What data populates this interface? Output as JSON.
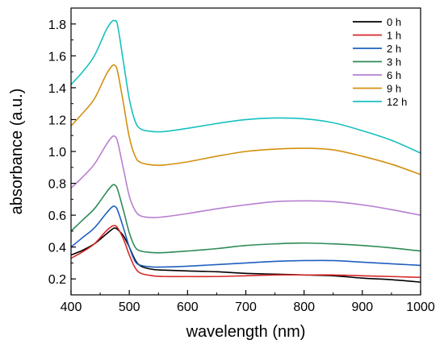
{
  "chart_data": {
    "type": "line",
    "xlabel": "wavelength (nm)",
    "ylabel": "absorbance (a.u.)",
    "xlim": [
      400,
      1000
    ],
    "ylim": [
      0.1,
      1.9
    ],
    "xticks": [
      400,
      500,
      600,
      700,
      800,
      900,
      1000
    ],
    "yticks": [
      0.2,
      0.4,
      0.6,
      0.8,
      1.0,
      1.2,
      1.4,
      1.6,
      1.8
    ],
    "ytick_labels": [
      "0.2",
      "0.4",
      "0.6",
      "0.8",
      "1.0",
      "1.2",
      "1.4",
      "1.6",
      "1.8"
    ],
    "grid": false,
    "legend_position": "top-right",
    "series": [
      {
        "name": "0 h",
        "color": "#000000",
        "x": [
          400,
          420,
          440,
          460,
          470,
          475,
          480,
          490,
          500,
          510,
          520,
          540,
          560,
          600,
          650,
          700,
          750,
          800,
          850,
          900,
          950,
          1000
        ],
        "y": [
          0.35,
          0.38,
          0.42,
          0.48,
          0.51,
          0.52,
          0.51,
          0.47,
          0.4,
          0.32,
          0.28,
          0.26,
          0.255,
          0.25,
          0.245,
          0.235,
          0.23,
          0.225,
          0.22,
          0.205,
          0.195,
          0.18
        ]
      },
      {
        "name": "1 h",
        "color": "#d62728",
        "x": [
          400,
          420,
          440,
          460,
          470,
          475,
          480,
          490,
          500,
          510,
          520,
          540,
          560,
          600,
          650,
          700,
          750,
          800,
          850,
          900,
          950,
          1000
        ],
        "y": [
          0.33,
          0.37,
          0.42,
          0.5,
          0.53,
          0.535,
          0.52,
          0.45,
          0.35,
          0.27,
          0.235,
          0.22,
          0.215,
          0.215,
          0.215,
          0.22,
          0.225,
          0.225,
          0.225,
          0.22,
          0.215,
          0.21
        ]
      },
      {
        "name": "2 h",
        "color": "#1f5fbf",
        "x": [
          400,
          420,
          440,
          460,
          470,
          475,
          480,
          490,
          500,
          510,
          520,
          540,
          560,
          600,
          650,
          700,
          750,
          800,
          850,
          900,
          950,
          1000
        ],
        "y": [
          0.4,
          0.46,
          0.52,
          0.61,
          0.65,
          0.655,
          0.63,
          0.52,
          0.4,
          0.31,
          0.285,
          0.275,
          0.275,
          0.28,
          0.29,
          0.3,
          0.31,
          0.315,
          0.315,
          0.305,
          0.295,
          0.285
        ]
      },
      {
        "name": "3 h",
        "color": "#2e8b57",
        "x": [
          400,
          420,
          440,
          460,
          470,
          475,
          480,
          490,
          500,
          510,
          520,
          540,
          560,
          600,
          650,
          700,
          750,
          800,
          850,
          900,
          950,
          1000
        ],
        "y": [
          0.5,
          0.57,
          0.64,
          0.74,
          0.785,
          0.79,
          0.76,
          0.63,
          0.49,
          0.4,
          0.375,
          0.365,
          0.365,
          0.375,
          0.39,
          0.41,
          0.42,
          0.425,
          0.42,
          0.41,
          0.395,
          0.375
        ]
      },
      {
        "name": "6 h",
        "color": "#b87fd0",
        "x": [
          400,
          420,
          440,
          460,
          470,
          475,
          480,
          490,
          500,
          510,
          520,
          540,
          560,
          600,
          650,
          700,
          750,
          800,
          850,
          900,
          950,
          1000
        ],
        "y": [
          0.77,
          0.84,
          0.92,
          1.04,
          1.09,
          1.095,
          1.06,
          0.89,
          0.72,
          0.63,
          0.595,
          0.585,
          0.59,
          0.61,
          0.64,
          0.665,
          0.685,
          0.69,
          0.685,
          0.665,
          0.635,
          0.6
        ]
      },
      {
        "name": "9 h",
        "color": "#d4900f",
        "x": [
          400,
          420,
          440,
          460,
          470,
          475,
          480,
          490,
          500,
          510,
          520,
          540,
          560,
          600,
          650,
          700,
          750,
          800,
          850,
          900,
          950,
          1000
        ],
        "y": [
          1.16,
          1.24,
          1.33,
          1.48,
          1.535,
          1.54,
          1.5,
          1.3,
          1.09,
          0.97,
          0.93,
          0.915,
          0.915,
          0.935,
          0.97,
          1.0,
          1.015,
          1.02,
          1.01,
          0.97,
          0.92,
          0.855
        ]
      },
      {
        "name": "12 h",
        "color": "#17c0c0",
        "x": [
          400,
          420,
          440,
          460,
          470,
          475,
          480,
          490,
          500,
          510,
          520,
          540,
          560,
          600,
          650,
          700,
          750,
          800,
          850,
          900,
          950,
          1000
        ],
        "y": [
          1.42,
          1.5,
          1.6,
          1.76,
          1.815,
          1.82,
          1.79,
          1.56,
          1.33,
          1.19,
          1.14,
          1.125,
          1.125,
          1.145,
          1.175,
          1.2,
          1.21,
          1.205,
          1.18,
          1.13,
          1.07,
          0.99
        ]
      }
    ]
  }
}
